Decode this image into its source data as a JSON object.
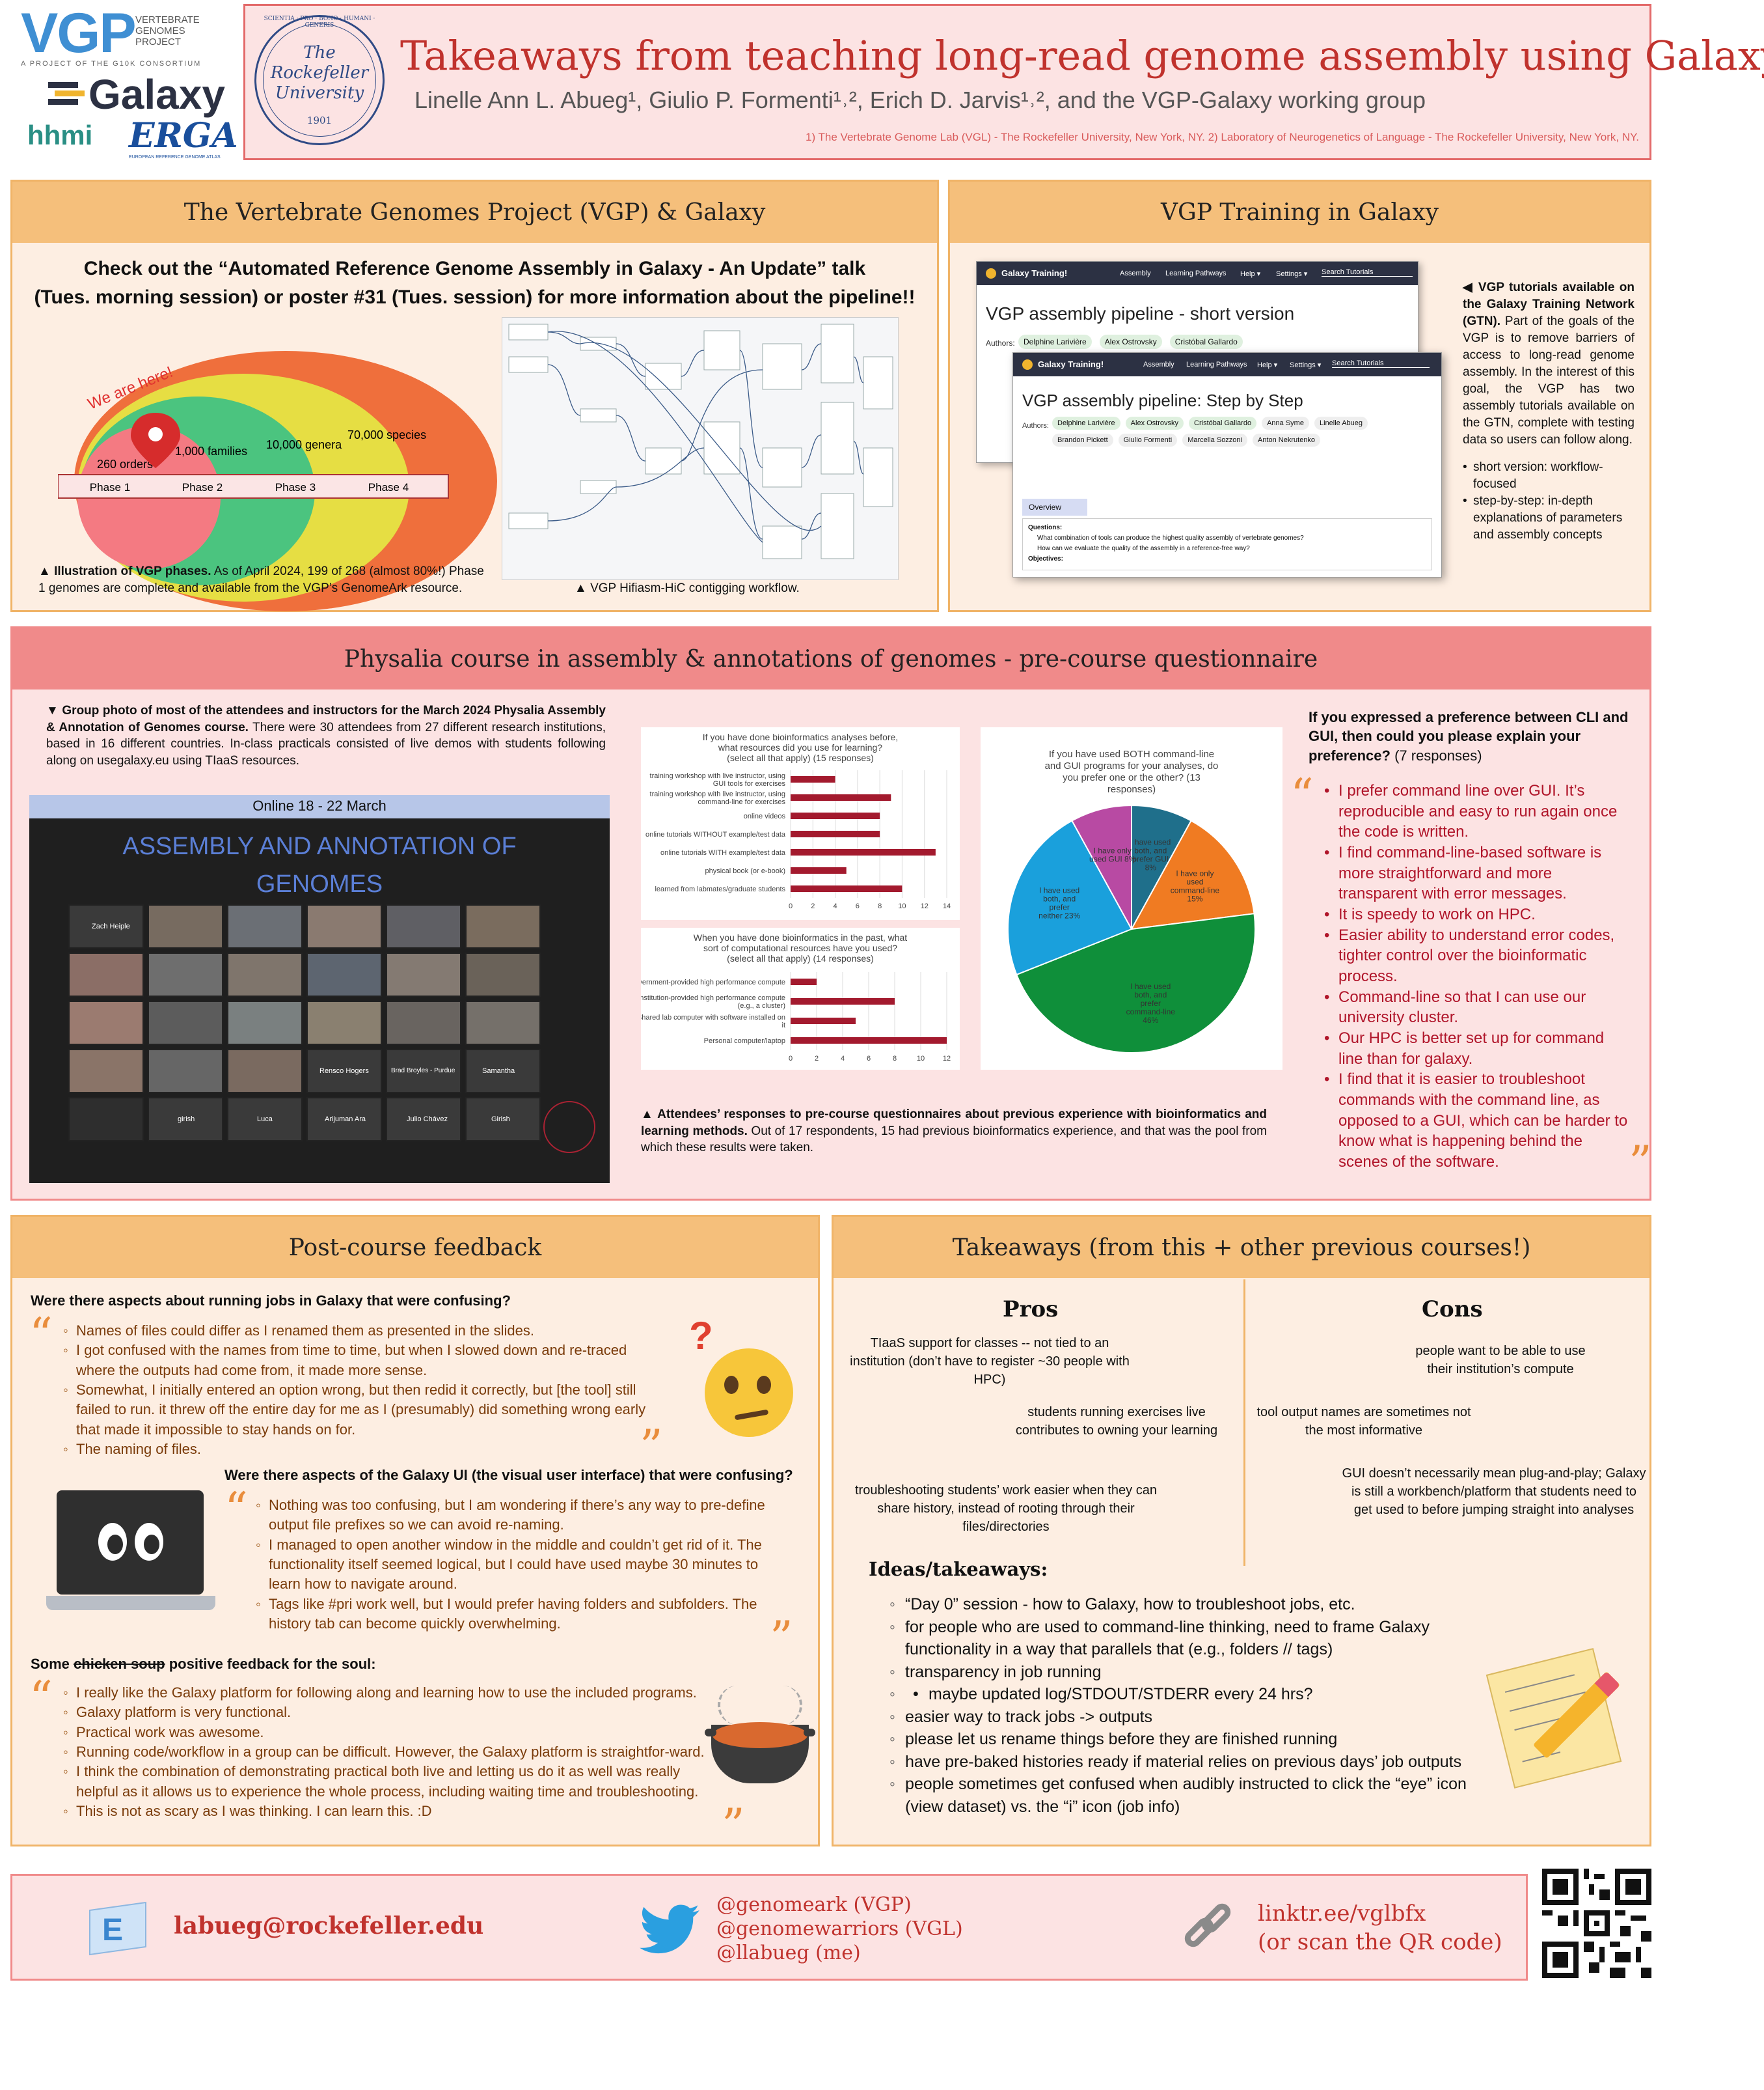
{
  "header": {
    "logos": {
      "vgp": "VGP",
      "vgp_sub": [
        "VERTEBRATE",
        "GENOMES",
        "PROJECT"
      ],
      "vgp_tag": "A PROJECT OF THE G10K CONSORTIUM",
      "galaxy": "Galaxy",
      "hhmi": "hhmi",
      "erga": "ERGA",
      "erga_sub": "EUROPEAN REFERENCE GENOME ATLAS",
      "rockefeller_name": [
        "The",
        "Rockefeller",
        "University"
      ],
      "rockefeller_ring": "SCIENTIA · PRO · BONO · HUMANI · GENERIS",
      "rockefeller_year": "1901"
    },
    "title": "Takeaways from teaching long-read genome assembly using Galaxy",
    "authors": "Linelle Ann L. Abueg¹, Giulio P. Formenti¹˒², Erich D. Jarvis¹˒², and the VGP-Galaxy working group",
    "affiliations": "1) The Vertebrate Genome Lab (VGL) - The Rockefeller University, New York, NY. 2) Laboratory of Neurogenetics of Language - The Rockefeller University, New York, NY."
  },
  "vgp_section": {
    "title": "The Vertebrate Genomes Project (VGP) & Galaxy",
    "talk_note_line1": "Check out the “Automated Reference Genome Assembly in Galaxy - An Update” talk",
    "talk_note_line2": "(Tues. morning session) or poster #31 (Tues. session) for more information about the pipeline!!",
    "diagram": {
      "we_are_here": "We are here!",
      "orders": "260 orders",
      "families": "1,000 families",
      "genera": "10,000 genera",
      "species": "70,000 species",
      "phases": [
        "Phase 1",
        "Phase 2",
        "Phase 3",
        "Phase 4"
      ]
    },
    "caption_left_bold": "▲ Illustration of VGP phases.",
    "caption_left": " As of April 2024, 199 of 268 (almost 80%!) Phase 1 genomes are complete and available from the VGP’s GenomeArk resource.",
    "caption_right": "▲ VGP Hifiasm-HiC contigging workflow."
  },
  "training_section": {
    "title": "VGP Training in Galaxy",
    "screenshot1": {
      "brand": "Galaxy Training!",
      "nav": [
        "Assembly",
        "Learning Pathways",
        "Help ▾",
        "Settings ▾",
        "Search Tutorials"
      ],
      "heading": "VGP assembly pipeline - short version",
      "authors_label": "Authors:",
      "authors": [
        "Delphine Larivière",
        "Alex Ostrovsky",
        "Cristóbal Gallardo"
      ]
    },
    "screenshot2": {
      "brand": "Galaxy Training!",
      "nav": [
        "Assembly",
        "Learning Pathways",
        "Help ▾",
        "Settings ▾",
        "Search Tutorials"
      ],
      "heading": "VGP assembly pipeline: Step by Step",
      "authors_label": "Authors:",
      "authors": [
        "Delphine Larivière",
        "Alex Ostrovsky",
        "Cristóbal Gallardo",
        "Anna Syme",
        "Linelle Abueg",
        "Brandon Pickett",
        "Giulio Formenti",
        "Marcella Sozzoni",
        "Anton Nekrutenko"
      ],
      "tab": "Overview",
      "questions_label": "Questions:",
      "questions": [
        "What combination of tools can produce the highest quality assembly of vertebrate genomes?",
        "How can we evaluate the quality of the assembly in a reference-free way?"
      ],
      "objectives_label": "Objectives:"
    },
    "desc_bold": "◀ VGP tutorials available on the Galaxy Training Network (GTN).",
    "desc": " Part of the goals of the VGP is to remove barriers of access to long-read genome assembly. In the interest of this goal, the VGP has two assembly tutorials available on the GTN, complete with testing data so users can follow along.",
    "bullets": [
      "short version: workflow-focused",
      "step-by-step: in-depth explanations of parameters and assembly concepts"
    ]
  },
  "physalia_section": {
    "title": "Physalia course in assembly & annotations of genomes - pre-course questionnaire",
    "photo_caption_bold": "▼ Group photo of most of the attendees and instructors for the March 2024 Physalia Assembly & Annotation of Genomes course.",
    "photo_caption": " There were 30 attendees from 27 different research institutions, based in 16 different countries. In-class practicals consisted of live demos with students following along on usegalaxy.eu using TIaaS resources.",
    "photo": {
      "banner": "Online 18 - 22 March",
      "title_line1": "ASSEMBLY AND ANNOTATION OF",
      "title_line2": "GENOMES",
      "names": [
        "Zach Heiple",
        "Rensco Hogers",
        "Brad Broyles - Purdue",
        "Samantha",
        "girish",
        "Luca",
        "Arijuman Ara",
        "Julio Chávez",
        "Girish"
      ]
    },
    "results_caption_bold": "▲ Attendees’ responses to pre-course questionnaires about previous experience with bioinformatics and learning methods.",
    "results_caption": " Out of 17 respondents, 15 had previous bioinformatics experience, and that was the pool from which these results were taken.",
    "pref_question": "If you expressed a preference between CLI and GUI, then could you please explain your preference?",
    "pref_responses_count": " (7 responses)",
    "pref_responses": [
      "I prefer command line over GUI. It’s reproducible and easy to run again once the code is written.",
      "I find command-line-based software is more straightforward and more transparent with error messages.",
      "It is speedy to work on HPC.",
      "Easier ability to understand error codes, tighter control over the bioinformatic process.",
      "Command-line so that I can use our university cluster.",
      "Our HPC is better set up for command line than for galaxy.",
      "I find that it is easier to troubleshoot commands with the command line, as opposed to a GUI, which can be harder to know what is happening behind the scenes of the software."
    ]
  },
  "chart_data": [
    {
      "type": "bar",
      "orientation": "horizontal",
      "title": "If you have done bioinformatics analyses before, what resources did you use for learning? (select all that apply) (15 responses)",
      "categories": [
        "training workshop with live instructor, using GUI tools for exercises",
        "training workshop with live instructor, using command-line for exercises",
        "online videos",
        "online tutorials WITHOUT example/test data",
        "online tutorials WITH example/test data",
        "physical book (or e-book)",
        "learned from labmates/graduate students"
      ],
      "values": [
        4,
        9,
        8,
        8,
        13,
        5,
        10
      ],
      "xlim": [
        0,
        14
      ],
      "xticks": [
        0,
        2,
        4,
        6,
        8,
        10,
        12,
        14
      ]
    },
    {
      "type": "bar",
      "orientation": "horizontal",
      "title": "When you have done bioinformatics in the past, what sort of computational resources have you used? (select all that apply) (14 responses)",
      "categories": [
        "Government-provided high performance compute",
        "Institution-provided high performance compute (e.g., a cluster)",
        "Shared lab computer with software installed on it",
        "Personal computer/laptop"
      ],
      "values": [
        2,
        8,
        5,
        12
      ],
      "xlim": [
        0,
        12
      ],
      "xticks": [
        0,
        2,
        4,
        6,
        8,
        10,
        12
      ]
    },
    {
      "type": "pie",
      "title": "If you have used BOTH command-line and GUI programs for your analyses, do you prefer one or the other? (13 responses)",
      "slices": [
        {
          "label": "I have used both, and prefer GUI",
          "value": 8,
          "color": "#1f6f8b"
        },
        {
          "label": "I have only used command-line",
          "value": 15,
          "color": "#f07b22"
        },
        {
          "label": "I have used both, and prefer command-line",
          "value": 46,
          "color": "#0f8f3a"
        },
        {
          "label": "I have used both, and prefer neither",
          "value": 23,
          "color": "#1aa0dc"
        },
        {
          "label": "I have only used GUI",
          "value": 8,
          "color": "#b84aa3"
        }
      ],
      "slice_texts": [
        "I have used both, and prefer GUI 8%",
        "I have only used command-line 15%",
        "I have used both, and prefer command-line 46%",
        "I have used both, and prefer neither 23%",
        "I have only used GUI 8%"
      ]
    }
  ],
  "postcourse_section": {
    "title": "Post-course feedback",
    "q1": "Were there aspects about running jobs in Galaxy that were confusing?",
    "q1_items": [
      "Names of files could differ as I renamed them as presented in the slides.",
      "I got confused with the names from time to time, but when I slowed down and re-traced where the outputs had come from, it made more sense.",
      "Somewhat, I initially entered an option wrong, but then redid it correctly, but [the tool] still failed to run. it threw off the entire day for me as I (presumably) did something wrong early that made it impossible to stay hands on for.",
      "The naming of files."
    ],
    "q2": "Were there aspects of the Galaxy UI (the visual user interface) that were confusing?",
    "q2_items": [
      "Nothing was too confusing, but I am wondering if there’s any way to pre-define output file prefixes so we can avoid re-naming.",
      "I managed to open another window in the middle and couldn’t get rid of it. The functionality itself seemed logical, but I could have used maybe 30 minutes to learn how to navigate around.",
      "Tags like #pri work well, but I would prefer having folders and subfolders. The history tab can become quickly overwhelming."
    ],
    "q3_prefix": "Some ",
    "q3_struck": "chicken soup",
    "q3_suffix": " positive feedback for the soul:",
    "q3_items": [
      "I really like the Galaxy platform for following along and learning how to use the included programs.",
      "Galaxy platform is very functional.",
      "Practical work was awesome.",
      "Running code/workflow in a group can be difficult. However, the Galaxy platform is straightfor-ward.",
      "I think the combination of demonstrating practical both live and letting us do it as well was really helpful as it allows us to experience the whole process, including waiting time and troubleshooting.",
      "This is not as scary as I was thinking. I can learn this. :D"
    ],
    "open_quote": "“",
    "close_quote": "”",
    "thinking_mark": "?"
  },
  "takeaways_section": {
    "title": "Takeaways (from this + other previous courses!)",
    "pros_title": "Pros",
    "cons_title": "Cons",
    "pros": [
      "TIaaS support for classes -- not tied to an institution (don’t have to register ~30 people with HPC)",
      "students running exercises live contributes to owning your learning",
      "troubleshooting students’ work easier when they can share history, instead of rooting through their files/directories"
    ],
    "cons": [
      "people want to be able to use their institution’s compute",
      "tool output names are sometimes not the most informative",
      "GUI doesn’t necessarily mean plug-and-play; Galaxy is still a workbench/platform that students need to get used to before jumping straight into analyses"
    ],
    "ideas_title": "Ideas/takeaways:",
    "ideas": [
      "“Day 0” session - how to Galaxy, how to troubleshoot jobs, etc.",
      "for people who are used to command-line thinking, need to frame Galaxy functionality in a way that parallels that (e.g., folders // tags)",
      "transparency in job running",
      "easier way to track jobs -> outputs",
      "please let us rename things before they are finished running",
      "have pre-baked histories ready if material relies on previous days’ job outputs",
      "people sometimes get confused when audibly instructed to click the “eye” icon (view dataset) vs. the “i” icon (job info)"
    ],
    "ideas_sub": "maybe updated log/STDOUT/STDERR every 24 hrs?"
  },
  "footer": {
    "email": "labueg@rockefeller.edu",
    "twitter": [
      "@genomeark (VGP)",
      "@genomewarriors (VGL)",
      "@llabueg (me)"
    ],
    "link_line1": "linktr.ee/vglbfx",
    "link_line2": "(or scan the QR code)"
  },
  "colors": {
    "orange_header": "#f5bf7b",
    "orange_body": "#fdeee2",
    "red_header": "#f08a8a",
    "red_body": "#fce3e3",
    "bar": "#a31a2e",
    "accent_red": "#b0152a"
  }
}
